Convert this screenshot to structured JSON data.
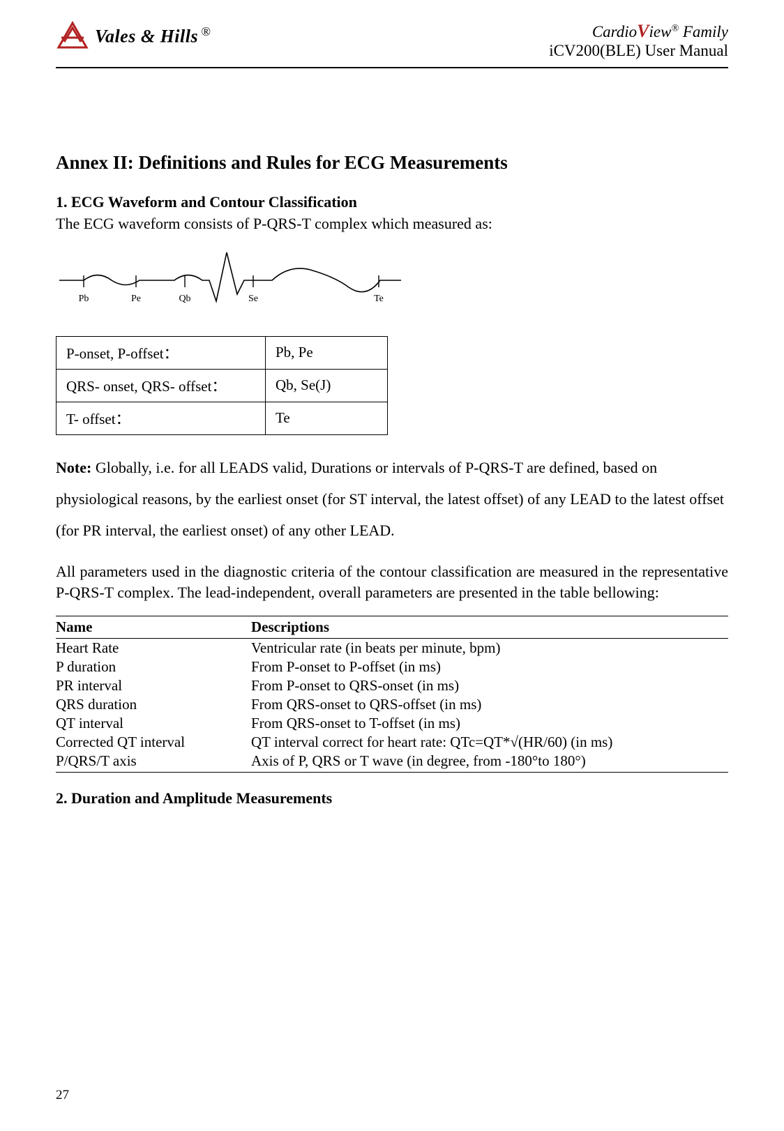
{
  "header": {
    "brand": "Vales & Hills",
    "reg": "®",
    "product_line_prefix": "Cardio",
    "product_line_v": "V",
    "product_line_suffix": "iew",
    "product_line_reg": "®",
    "product_line_family": " Family",
    "manual_model": "iCV200(BLE) User Manual"
  },
  "annex": {
    "label": "Annex II:",
    "title": " Definitions and Rules for ECG Measurements"
  },
  "section1": {
    "heading": "1. ECG Waveform and Contour Classification",
    "intro": "The ECG waveform consists of P-QRS-T complex which measured as:"
  },
  "waveform": {
    "labels": [
      "Pb",
      "Pe",
      "Qb",
      "Se",
      "Te"
    ],
    "label_fontsize": 14,
    "stroke": "#000000",
    "stroke_width": 1.5
  },
  "onset_table": {
    "rows": [
      {
        "l": "P-onset, P-offset：",
        "r": "Pb, Pe"
      },
      {
        "l": "QRS- onset, QRS- offset：",
        "r": "Qb, Se(J)"
      },
      {
        "l": "T- offset：",
        "r": "Te"
      }
    ]
  },
  "note": {
    "label": "Note:",
    "text": " Globally, i.e. for all LEADS valid, Durations or intervals of P-QRS-T are defined, based on physiological reasons, by the earliest onset (for ST interval, the latest offset) of any LEAD to the latest offset (for PR interval, the earliest onset) of any other LEAD."
  },
  "para2": "All parameters used in the diagnostic criteria of the contour classification are measured in the representative P-QRS-T complex. The lead-independent, overall parameters are presented in the table bellowing:",
  "params_table": {
    "header": {
      "c1": "Name",
      "c2": "Descriptions"
    },
    "rows": [
      {
        "name": "Heart Rate",
        "desc": "Ventricular rate (in beats per minute, bpm)"
      },
      {
        "name": "P duration",
        "desc": "From P-onset to P-offset (in ms)"
      },
      {
        "name": "PR interval",
        "desc": "From P-onset to QRS-onset (in ms)"
      },
      {
        "name": "QRS duration",
        "desc": "From QRS-onset to QRS-offset (in ms)"
      },
      {
        "name": "QT interval",
        "desc": "From QRS-onset to T-offset (in ms)"
      },
      {
        "name": "Corrected QT interval",
        "desc": "QT interval correct for heart rate: QTc=QT*√(HR/60) (in ms)"
      },
      {
        "name": "P/QRS/T axis",
        "desc": "Axis of P, QRS or T wave (in degree, from -180°to 180°)"
      }
    ]
  },
  "section2": {
    "heading": "2. Duration and Amplitude Measurements"
  },
  "page": "27"
}
